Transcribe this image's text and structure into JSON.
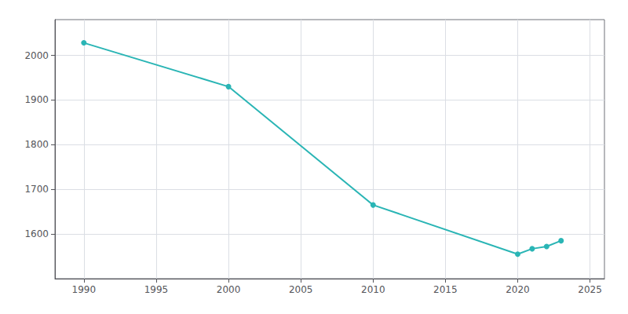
{
  "chart_data": {
    "type": "line",
    "x": [
      1990,
      2000,
      2010,
      2020,
      2021,
      2022,
      2023
    ],
    "values": [
      2028,
      1930,
      1665,
      1555,
      1567,
      1572,
      1585
    ],
    "color": "#2ab5b5",
    "marker": "circle",
    "xlim": [
      1988,
      2026
    ],
    "xticks": [
      1990,
      1995,
      2000,
      2005,
      2010,
      2015,
      2020,
      2025
    ],
    "ylim": [
      1500,
      2080
    ],
    "yticks": [
      1600,
      1700,
      1800,
      1900,
      2000
    ],
    "grid": true
  }
}
